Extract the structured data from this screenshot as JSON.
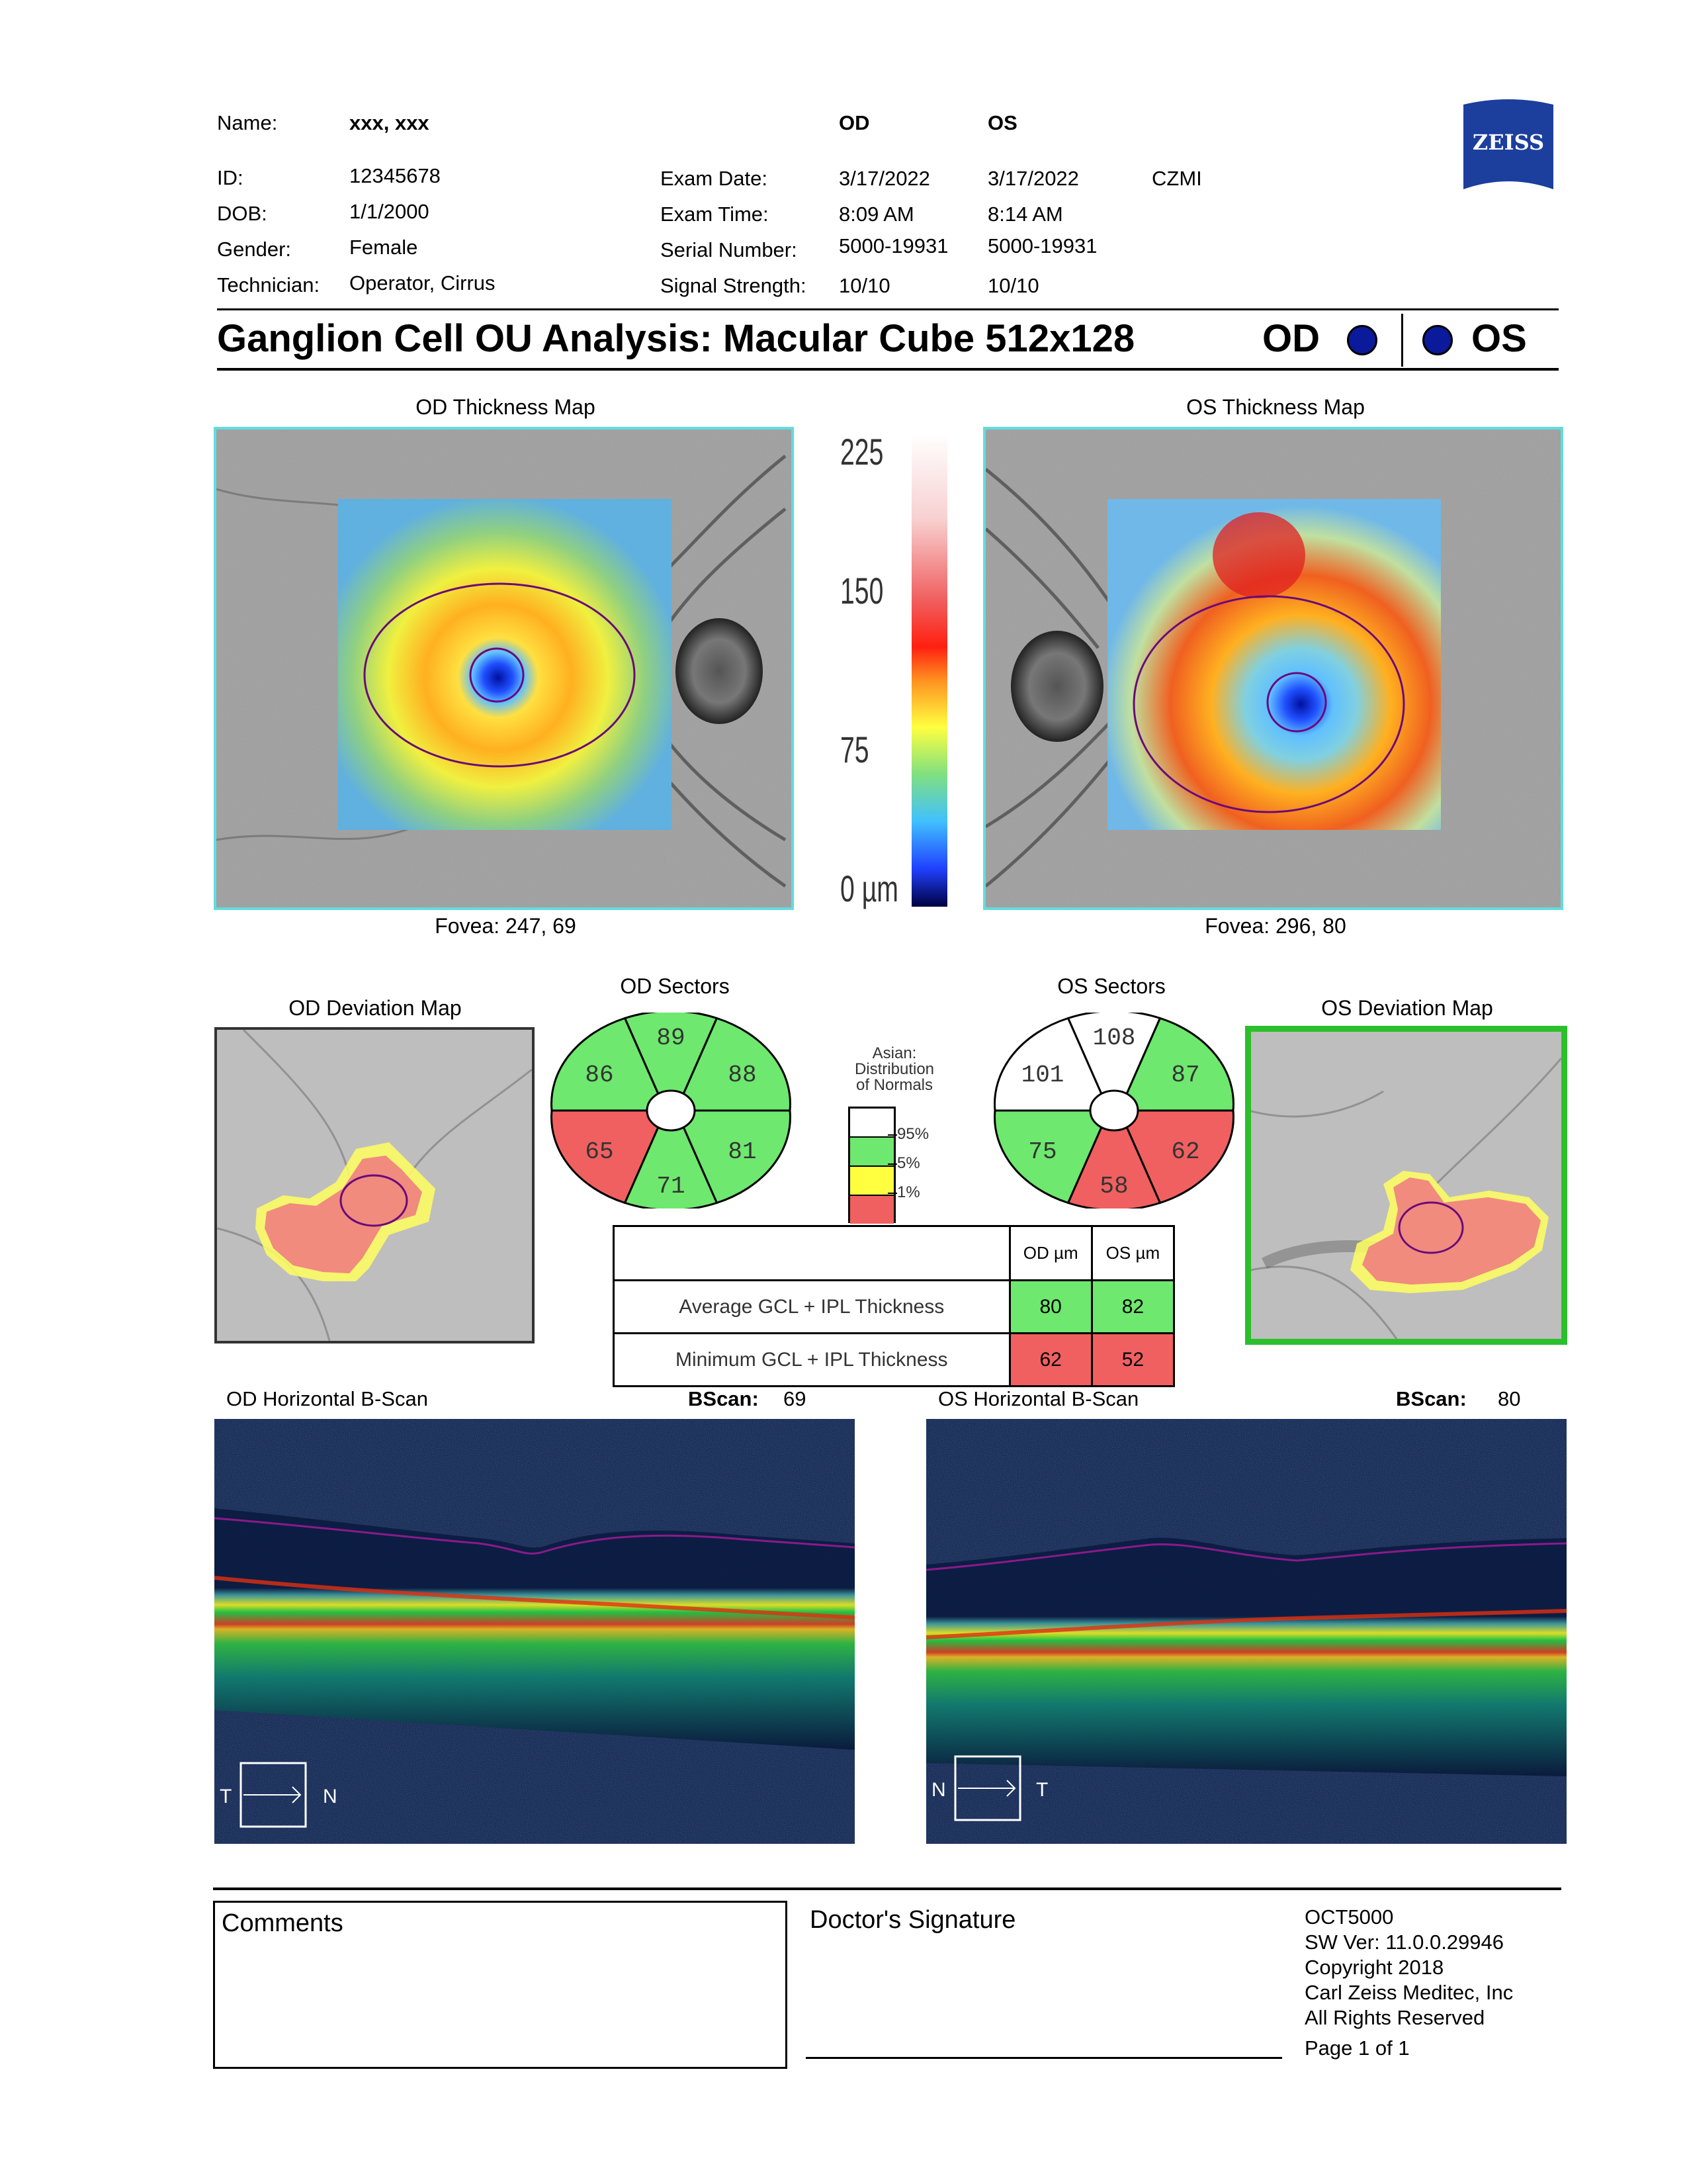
{
  "patient": {
    "name_label": "Name:",
    "name_value": "xxx, xxx",
    "id_label": "ID:",
    "id_value": "12345678",
    "dob_label": "DOB:",
    "dob_value": "1/1/2000",
    "gender_label": "Gender:",
    "gender_value": "Female",
    "technician_label": "Technician:",
    "technician_value": "Operator, Cirrus"
  },
  "exam": {
    "od_header": "OD",
    "os_header": "OS",
    "date_label": "Exam Date:",
    "date_od": "3/17/2022",
    "date_os": "3/17/2022",
    "site": "CZMI",
    "time_label": "Exam Time:",
    "time_od": "8:09 AM",
    "time_os": "8:14 AM",
    "serial_label": "Serial Number:",
    "serial_od": "5000-19931",
    "serial_os": "5000-19931",
    "signal_label": "Signal Strength:",
    "signal_od": "10/10",
    "signal_os": "10/10"
  },
  "brand": {
    "logo_text": "ZEISS",
    "color": "#1c3f9e"
  },
  "title": {
    "text": "Ganglion Cell OU Analysis: Macular Cube 512x128",
    "od": "OD",
    "os": "OS",
    "eye_dot_color": "#0a1a9a"
  },
  "thickness_maps": {
    "od_title": "OD Thickness Map",
    "os_title": "OS Thickness Map",
    "od_fovea": "Fovea: 247, 69",
    "os_fovea": "Fovea: 296, 80"
  },
  "colorbar": {
    "labels": [
      "225",
      "150",
      "75",
      "0 µm"
    ]
  },
  "deviation": {
    "od_title": "OD Deviation Map",
    "os_title": "OS Deviation Map"
  },
  "sectors": {
    "od_title": "OD Sectors",
    "os_title": "OS Sectors",
    "od": {
      "top": {
        "value": "89",
        "status": "green"
      },
      "upper_right": {
        "value": "88",
        "status": "green"
      },
      "lower_right": {
        "value": "81",
        "status": "green"
      },
      "bottom": {
        "value": "71",
        "status": "green"
      },
      "lower_left": {
        "value": "65",
        "status": "red"
      },
      "upper_left": {
        "value": "86",
        "status": "green"
      }
    },
    "os": {
      "top": {
        "value": "108",
        "status": "white"
      },
      "upper_right": {
        "value": "87",
        "status": "green"
      },
      "lower_right": {
        "value": "62",
        "status": "red"
      },
      "bottom": {
        "value": "58",
        "status": "red"
      },
      "lower_left": {
        "value": "75",
        "status": "green"
      },
      "upper_left": {
        "value": "101",
        "status": "white"
      }
    }
  },
  "legend": {
    "title_line1": "Asian:",
    "title_line2": "Distribution",
    "title_line3": "of Normals",
    "labels": [
      "95%",
      "5%",
      "1%"
    ],
    "colors": {
      "white": "#ffffff",
      "green": "#6ee86e",
      "yellow": "#ffff40",
      "red": "#f06060"
    }
  },
  "gcl_table": {
    "od_header": "OD µm",
    "os_header": "OS µm",
    "avg_label": "Average GCL + IPL Thickness",
    "avg_od": "80",
    "avg_os": "82",
    "min_label": "Minimum GCL + IPL Thickness",
    "min_od": "62",
    "min_os": "52"
  },
  "bscans": {
    "od_title": "OD Horizontal B-Scan",
    "os_title": "OS Horizontal B-Scan",
    "bscan_label": "BScan:",
    "od_bscan": "69",
    "os_bscan": "80",
    "od_left": "T",
    "od_right": "N",
    "os_left": "N",
    "os_right": "T"
  },
  "footer": {
    "comments": "Comments",
    "signature": "Doctor's Signature",
    "device": "OCT5000",
    "sw": "SW Ver: 11.0.0.29946",
    "copyright": "Copyright 2018",
    "company": "Carl Zeiss Meditec, Inc",
    "rights": "All Rights Reserved",
    "page": "Page 1 of 1"
  }
}
